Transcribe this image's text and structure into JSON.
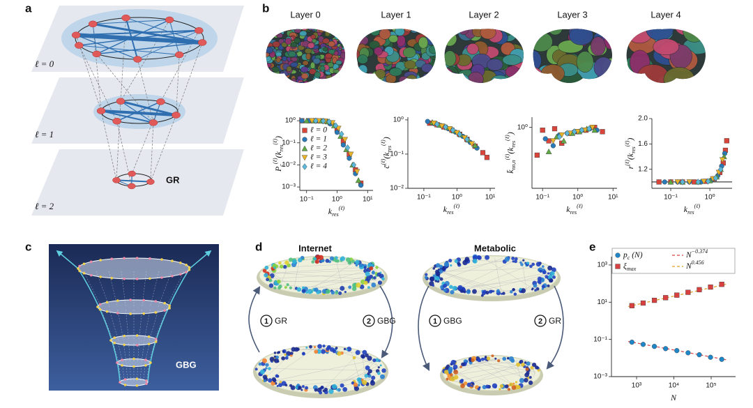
{
  "figure": {
    "panel_labels": [
      "a",
      "b",
      "c",
      "d",
      "e"
    ],
    "a": {
      "layers": [
        "ℓ = 0",
        "ℓ = 1",
        "ℓ = 2"
      ],
      "method": "GR"
    },
    "b": {
      "layers": [
        "Layer 0",
        "Layer 1",
        "Layer 2",
        "Layer 3",
        "Layer 4"
      ]
    },
    "c": {
      "method": "GBG"
    },
    "d": {
      "networks": [
        "Internet",
        "Metabolic"
      ],
      "steps": [
        {
          "num": "1",
          "label": "GR"
        },
        {
          "num": "2",
          "label": "GBG"
        },
        {
          "num": "1",
          "label": "GBG"
        },
        {
          "num": "2",
          "label": "GR"
        }
      ]
    }
  },
  "chart_data": [
    {
      "type": "scatter",
      "xscale": "log",
      "yscale": "log",
      "xlim": [
        0.06,
        15
      ],
      "ylim": [
        0.0007,
        1.45
      ],
      "xticks": [
        {
          "value": 0.1,
          "label": "10⁻¹"
        },
        {
          "value": 1,
          "label": "10⁰"
        },
        {
          "value": 10,
          "label": "10¹"
        }
      ],
      "yticks": [
        {
          "value": 0.001,
          "label": "10⁻³"
        },
        {
          "value": 0.01,
          "label": "10⁻²"
        },
        {
          "value": 0.1,
          "label": "10⁻¹"
        },
        {
          "value": 1,
          "label": "10⁰"
        }
      ],
      "ylabel": [
        {
          "text": "P"
        },
        {
          "text": "c",
          "pos": "sub"
        },
        {
          "text": "(ℓ)",
          "pos": "sup"
        },
        {
          "text": "(k"
        },
        {
          "text": "res",
          "pos": "sub"
        },
        {
          "text": "(ℓ)",
          "pos": "sup"
        },
        {
          "text": ")"
        }
      ],
      "xlabel": [
        {
          "text": "k"
        },
        {
          "text": "res",
          "pos": "sub"
        },
        {
          "text": "(ℓ)",
          "pos": "sup"
        }
      ],
      "series": [
        {
          "name": "ℓ = 0",
          "color": "#d9453a",
          "marker": "square",
          "x": [
            0.07,
            0.12,
            0.2,
            0.35,
            0.6,
            1,
            1.6,
            2.5,
            4,
            6
          ],
          "values": [
            1,
            1,
            1,
            0.97,
            0.8,
            0.4,
            0.12,
            0.03,
            0.006,
            0.0015
          ]
        },
        {
          "name": "ℓ = 1",
          "color": "#2a7ab8",
          "marker": "circle",
          "x": [
            0.07,
            0.12,
            0.2,
            0.35,
            0.6,
            1,
            1.6,
            2.5,
            4,
            6
          ],
          "values": [
            1,
            1,
            0.99,
            0.95,
            0.72,
            0.3,
            0.08,
            0.02,
            0.004,
            0.0012
          ]
        },
        {
          "name": "ℓ = 2",
          "color": "#5fa845",
          "marker": "triangle",
          "x": [
            0.1,
            0.17,
            0.3,
            0.5,
            0.8,
            1.3,
            2,
            3.2,
            5
          ],
          "values": [
            1,
            1,
            0.98,
            0.9,
            0.6,
            0.2,
            0.05,
            0.01,
            0.002
          ]
        },
        {
          "name": "ℓ = 3",
          "color": "#e8b32a",
          "marker": "triangle-down",
          "x": [
            0.15,
            0.25,
            0.4,
            0.7,
            1.1,
            1.8,
            2.8,
            4.5
          ],
          "values": [
            1,
            0.99,
            0.96,
            0.8,
            0.45,
            0.14,
            0.03,
            0.005
          ]
        },
        {
          "name": "ℓ = 4",
          "color": "#5bb8d8",
          "marker": "diamond",
          "x": [
            0.2,
            0.35,
            0.55,
            0.9,
            1.4,
            2.2,
            3.5
          ],
          "values": [
            1,
            0.98,
            0.9,
            0.6,
            0.25,
            0.06,
            0.01
          ]
        }
      ]
    },
    {
      "type": "scatter",
      "xscale": "log",
      "yscale": "log",
      "xlim": [
        0.033,
        14
      ],
      "ylim": [
        0.01,
        1.2
      ],
      "xticks": [
        {
          "value": 0.1,
          "label": "10⁻¹"
        },
        {
          "value": 1,
          "label": "10⁰"
        },
        {
          "value": 10,
          "label": "10¹"
        }
      ],
      "yticks": [
        {
          "value": 0.01,
          "label": "10⁻²"
        },
        {
          "value": 0.1,
          "label": "10⁻¹"
        },
        {
          "value": 1,
          "label": "10⁰"
        }
      ],
      "ylabel": [
        {
          "text": "c̄"
        },
        {
          "text": "(ℓ)",
          "pos": "sup"
        },
        {
          "text": "(k"
        },
        {
          "text": "res",
          "pos": "sub"
        },
        {
          "text": "(ℓ)",
          "pos": "sup"
        },
        {
          "text": ")"
        }
      ],
      "xlabel": [
        {
          "text": "k"
        },
        {
          "text": "res",
          "pos": "sub"
        },
        {
          "text": "(ℓ)",
          "pos": "sup"
        }
      ],
      "series": [
        {
          "color": "#d9453a",
          "marker": "square",
          "x": [
            0.15,
            0.25,
            0.4,
            0.7,
            1.2,
            2,
            3.5,
            6,
            8
          ],
          "values": [
            0.8,
            0.72,
            0.62,
            0.5,
            0.38,
            0.27,
            0.17,
            0.11,
            0.08
          ]
        },
        {
          "color": "#2a7ab8",
          "marker": "circle",
          "x": [
            0.13,
            0.2,
            0.33,
            0.55,
            0.9,
            1.5,
            2.5,
            4
          ],
          "values": [
            0.9,
            0.78,
            0.68,
            0.55,
            0.44,
            0.33,
            0.22,
            0.15
          ]
        },
        {
          "color": "#5fa845",
          "marker": "triangle",
          "x": [
            0.18,
            0.3,
            0.5,
            0.8,
            1.3,
            2.2,
            3.5
          ],
          "values": [
            0.85,
            0.7,
            0.6,
            0.48,
            0.37,
            0.26,
            0.18
          ]
        },
        {
          "color": "#e8b32a",
          "marker": "triangle-down",
          "x": [
            0.2,
            0.35,
            0.6,
            1,
            1.7,
            2.8
          ],
          "values": [
            0.8,
            0.66,
            0.55,
            0.42,
            0.3,
            0.2
          ]
        },
        {
          "color": "#5bb8d8",
          "marker": "diamond",
          "x": [
            0.25,
            0.45,
            0.75,
            1.2,
            2
          ],
          "values": [
            0.75,
            0.62,
            0.5,
            0.38,
            0.27
          ]
        }
      ]
    },
    {
      "type": "scatter",
      "xscale": "log",
      "yscale": "log",
      "xlim": [
        0.05,
        13
      ],
      "ylim": [
        0.1,
        1.47
      ],
      "xticks": [
        {
          "value": 0.1,
          "label": "10⁻¹"
        },
        {
          "value": 1,
          "label": "10⁰"
        },
        {
          "value": 10,
          "label": "10¹"
        }
      ],
      "yticks": [
        {
          "value": 1,
          "label": "10⁰"
        }
      ],
      "ylabel": [
        {
          "text": "k̄"
        },
        {
          "text": "nn,n",
          "pos": "sub"
        },
        {
          "text": "(ℓ)",
          "pos": "sup"
        },
        {
          "text": "(k"
        },
        {
          "text": "res",
          "pos": "sub"
        },
        {
          "text": "(ℓ)",
          "pos": "sup"
        },
        {
          "text": ")"
        }
      ],
      "xlabel": [
        {
          "text": "k"
        },
        {
          "text": "res",
          "pos": "sub"
        },
        {
          "text": "(ℓ)",
          "pos": "sup"
        }
      ],
      "series": [
        {
          "color": "#d9453a",
          "marker": "square",
          "x": [
            0.07,
            0.1,
            0.15,
            0.22,
            0.35,
            0.6,
            1,
            1.7,
            3,
            5
          ],
          "values": [
            0.35,
            0.9,
            0.6,
            0.95,
            0.55,
            0.8,
            0.85,
            0.9,
            1,
            0.85
          ]
        },
        {
          "color": "#2a7ab8",
          "marker": "circle",
          "x": [
            0.12,
            0.2,
            0.3,
            0.5,
            0.8,
            1.3,
            2.2,
            3.5
          ],
          "values": [
            0.65,
            0.5,
            0.75,
            0.8,
            0.85,
            0.9,
            0.95,
            0.9
          ]
        },
        {
          "color": "#5fa845",
          "marker": "triangle",
          "x": [
            0.15,
            0.25,
            0.4,
            0.7,
            1.1,
            1.8,
            3
          ],
          "values": [
            0.4,
            0.7,
            0.6,
            0.8,
            0.85,
            0.95,
            0.9
          ]
        },
        {
          "color": "#e8b32a",
          "marker": "triangle-down",
          "x": [
            0.2,
            0.35,
            0.6,
            1,
            1.6,
            2.6
          ],
          "values": [
            0.6,
            0.75,
            0.8,
            0.85,
            0.9,
            1
          ]
        },
        {
          "color": "#5bb8d8",
          "marker": "diamond",
          "x": [
            0.3,
            0.5,
            0.8,
            1.3,
            2.1
          ],
          "values": [
            0.7,
            0.8,
            0.85,
            0.9,
            0.95
          ]
        }
      ]
    },
    {
      "type": "scatter",
      "xscale": "log",
      "yscale": "linear",
      "xlim": [
        0.033,
        3.7
      ],
      "ylim": [
        0.9,
        2
      ],
      "xticks": [
        {
          "value": 0.1,
          "label": "10⁻¹"
        },
        {
          "value": 1,
          "label": "10⁰"
        }
      ],
      "yticks": [
        1.2,
        1.6,
        {
          "value": 2,
          "label": "2.0"
        }
      ],
      "reference_line": 1,
      "ylabel": [
        {
          "text": "r"
        },
        {
          "text": "(ℓ)",
          "pos": "sup"
        },
        {
          "text": "(k"
        },
        {
          "text": "res",
          "pos": "sub"
        },
        {
          "text": "(ℓ)",
          "pos": "sup"
        },
        {
          "text": ")"
        }
      ],
      "xlabel": [
        {
          "text": "k"
        },
        {
          "text": "res",
          "pos": "sub"
        },
        {
          "text": "(ℓ)",
          "pos": "sup"
        }
      ],
      "series": [
        {
          "color": "#d9453a",
          "marker": "square",
          "x": [
            0.05,
            0.1,
            0.2,
            0.4,
            0.8,
            1.3,
            1.8,
            2.2,
            2.5,
            2.7
          ],
          "values": [
            1,
            1,
            1,
            1,
            1.01,
            1.05,
            1.15,
            1.3,
            1.5,
            1.65
          ]
        },
        {
          "color": "#2a7ab8",
          "marker": "circle",
          "x": [
            0.07,
            0.15,
            0.3,
            0.6,
            1.1,
            1.6,
            2,
            2.4
          ],
          "values": [
            1,
            1,
            1,
            1,
            1.03,
            1.1,
            1.25,
            1.45
          ]
        },
        {
          "color": "#5fa845",
          "marker": "triangle",
          "x": [
            0.1,
            0.2,
            0.5,
            1,
            1.5,
            1.9,
            2.3
          ],
          "values": [
            1,
            1,
            1,
            1.02,
            1.08,
            1.2,
            1.4
          ]
        },
        {
          "color": "#e8b32a",
          "marker": "triangle-down",
          "x": [
            0.15,
            0.3,
            0.7,
            1.2,
            1.7,
            2.1
          ],
          "values": [
            1,
            1,
            1.01,
            1.05,
            1.15,
            1.35
          ]
        },
        {
          "color": "#5bb8d8",
          "marker": "diamond",
          "x": [
            0.2,
            0.5,
            0.9,
            1.4,
            1.9
          ],
          "values": [
            1,
            1,
            1.01,
            1.06,
            1.2
          ]
        }
      ]
    },
    {
      "type": "scatter",
      "xscale": "log",
      "yscale": "log",
      "xlim": [
        212,
        451000
      ],
      "ylim": [
        0.001,
        2800
      ],
      "xticks": [
        {
          "value": 1000,
          "label": "10³"
        },
        {
          "value": 10000,
          "label": "10⁴"
        },
        {
          "value": 100000,
          "label": "10⁵"
        }
      ],
      "yticks": [
        {
          "value": 0.001,
          "label": "10⁻³"
        },
        {
          "value": 0.1,
          "label": "10⁻¹"
        },
        {
          "value": 10,
          "label": "10¹"
        },
        {
          "value": 1000,
          "label": "10³"
        }
      ],
      "xlabel": [
        {
          "text": "N"
        }
      ],
      "series": [
        {
          "name": [
            {
              "text": "p"
            },
            {
              "text": "c",
              "pos": "sub"
            },
            {
              "text": " (N)"
            }
          ],
          "color": "#1f86c8",
          "marker": "circle",
          "x": [
            750,
            1500,
            3000,
            6000,
            12000,
            24000,
            48000,
            96000,
            192000
          ],
          "values": [
            0.071,
            0.054,
            0.042,
            0.032,
            0.025,
            0.019,
            0.015,
            0.011,
            0.0085
          ]
        },
        {
          "name": [
            {
              "text": "ξ"
            },
            {
              "text": "max",
              "pos": "sub"
            }
          ],
          "color": "#d94040",
          "marker": "square",
          "x": [
            750,
            1500,
            3000,
            6000,
            12000,
            24000,
            48000,
            96000,
            192000
          ],
          "values": [
            6.5,
            9,
            12.6,
            17.5,
            24,
            34,
            47,
            65,
            91
          ]
        },
        {
          "name": [
            {
              "text": "N"
            },
            {
              "text": "−0.374",
              "pos": "sup"
            }
          ],
          "color": "#d94040",
          "dash": true,
          "x": [
            600,
            250000
          ],
          "values": [
            0.0773,
            0.0081
          ]
        },
        {
          "name": [
            {
              "text": "N"
            },
            {
              "text": "0.456",
              "pos": "sup"
            }
          ],
          "color": "#e0a020",
          "dash": true,
          "x": [
            600,
            250000
          ],
          "values": [
            5.87,
            92
          ]
        }
      ]
    }
  ]
}
